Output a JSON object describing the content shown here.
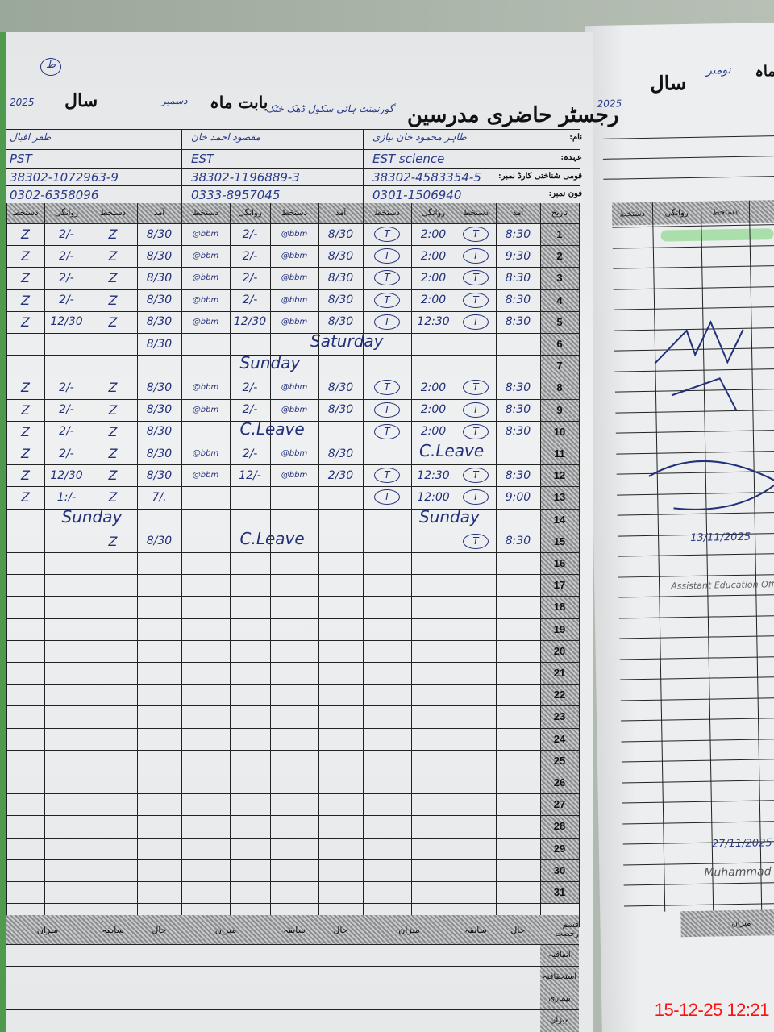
{
  "register": {
    "page_mark": "ط",
    "title": "رجسٹر حاضری مدرسین",
    "school_handwritten": "گورنمنٹ ہائی سکول ڈھک خٹک",
    "month_label": "بابت ماہ",
    "month_value": "دسمبر",
    "year_label": "سال",
    "year_value": "2025",
    "info_labels": {
      "name": "نام:",
      "designation": "عہدہ:",
      "cnic": "قومی شناختی کارڈ نمبر:",
      "phone": "فون نمبر:"
    },
    "column_headers": {
      "date": "تاریخ",
      "arrival": "آمد",
      "signature": "دستخط",
      "departure": "روانگی"
    },
    "teachers": [
      {
        "name": "طاہر محمود خان نیازی",
        "designation": "EST science",
        "cnic": "38302-4583354-5",
        "phone": "0301-1506940"
      },
      {
        "name": "مقصود احمد خان",
        "designation": "EST",
        "cnic": "38302-1196889-3",
        "phone": "0333-8957045"
      },
      {
        "name": "ظفر اقبال",
        "designation": "PST",
        "cnic": "38302-1072963-9",
        "phone": "0302-6358096"
      }
    ],
    "signature_marks": [
      "T",
      "@bbm",
      "Z"
    ],
    "rows": [
      {
        "day": "1",
        "t": [
          [
            "8:30",
            1,
            "2:00",
            1
          ],
          [
            "8/30",
            1,
            "2/-",
            1
          ],
          [
            "8/30",
            1,
            "2/-",
            1
          ]
        ]
      },
      {
        "day": "2",
        "t": [
          [
            "9:30",
            1,
            "2:00",
            1
          ],
          [
            "8/30",
            1,
            "2/-",
            1
          ],
          [
            "8/30",
            1,
            "2/-",
            1
          ]
        ]
      },
      {
        "day": "3",
        "t": [
          [
            "8:30",
            1,
            "2:00",
            1
          ],
          [
            "8/30",
            1,
            "2/-",
            1
          ],
          [
            "8/30",
            1,
            "2/-",
            1
          ]
        ]
      },
      {
        "day": "4",
        "t": [
          [
            "8:30",
            1,
            "2:00",
            1
          ],
          [
            "8/30",
            1,
            "2/-",
            1
          ],
          [
            "8/30",
            1,
            "2/-",
            1
          ]
        ]
      },
      {
        "day": "5",
        "t": [
          [
            "8:30",
            1,
            "12:30",
            1
          ],
          [
            "8/30",
            1,
            "12/30",
            1
          ],
          [
            "8/30",
            1,
            "12/30",
            1
          ]
        ]
      },
      {
        "day": "6",
        "t": [
          [
            "",
            0,
            "",
            0
          ],
          [
            "",
            0,
            "",
            0
          ],
          [
            "8/30",
            0,
            "",
            0
          ]
        ],
        "notes": [
          {
            "text": "Saturday",
            "span": "t1-t2"
          }
        ]
      },
      {
        "day": "7",
        "t": [
          [
            "",
            0,
            "",
            0
          ],
          [
            "",
            0,
            "",
            0
          ],
          [
            "",
            0,
            "",
            0
          ]
        ],
        "notes": [
          {
            "text": "Sunday",
            "span": "t2"
          }
        ]
      },
      {
        "day": "8",
        "t": [
          [
            "8:30",
            1,
            "2:00",
            1
          ],
          [
            "8/30",
            1,
            "2/-",
            1
          ],
          [
            "8/30",
            1,
            "2/-",
            1
          ]
        ]
      },
      {
        "day": "9",
        "t": [
          [
            "8:30",
            1,
            "2:00",
            1
          ],
          [
            "8/30",
            1,
            "2/-",
            1
          ],
          [
            "8/30",
            1,
            "2/-",
            1
          ]
        ]
      },
      {
        "day": "10",
        "t": [
          [
            "8:30",
            1,
            "2:00",
            1
          ],
          [
            "",
            0,
            "",
            0
          ],
          [
            "8/30",
            1,
            "2/-",
            1
          ]
        ],
        "notes": [
          {
            "text": "C.Leave",
            "span": "t2"
          }
        ]
      },
      {
        "day": "11",
        "t": [
          [
            "",
            0,
            "",
            0
          ],
          [
            "8/30",
            1,
            "2/-",
            1
          ],
          [
            "8/30",
            1,
            "2/-",
            1
          ]
        ],
        "notes": [
          {
            "text": "C.Leave",
            "span": "t1"
          }
        ]
      },
      {
        "day": "12",
        "t": [
          [
            "8:30",
            1,
            "12:30",
            1
          ],
          [
            "2/30",
            1,
            "12/-",
            1
          ],
          [
            "8/30",
            1,
            "12/30",
            1
          ]
        ]
      },
      {
        "day": "13",
        "t": [
          [
            "9:00",
            1,
            "12:00",
            1
          ],
          [
            "",
            0,
            "",
            0
          ],
          [
            "7/.",
            1,
            "1:/-",
            1
          ]
        ]
      },
      {
        "day": "14",
        "t": [
          [
            "",
            0,
            "",
            0
          ],
          [
            "",
            0,
            "",
            0
          ],
          [
            "",
            0,
            "",
            0
          ]
        ],
        "notes": [
          {
            "text": "Sunday",
            "span": "t1"
          },
          {
            "text": "Sunday",
            "span": "t3"
          }
        ]
      },
      {
        "day": "15",
        "t": [
          [
            "8:30",
            1,
            "",
            0
          ],
          [
            "",
            0,
            "",
            0
          ],
          [
            "8/30",
            1,
            "",
            0
          ]
        ],
        "notes": [
          {
            "text": "C.Leave",
            "span": "t2"
          }
        ]
      },
      {
        "day": "16"
      },
      {
        "day": "17"
      },
      {
        "day": "18"
      },
      {
        "day": "19"
      },
      {
        "day": "20"
      },
      {
        "day": "21"
      },
      {
        "day": "22"
      },
      {
        "day": "23"
      },
      {
        "day": "24"
      },
      {
        "day": "25"
      },
      {
        "day": "26"
      },
      {
        "day": "27"
      },
      {
        "day": "28"
      },
      {
        "day": "29"
      },
      {
        "day": "30"
      },
      {
        "day": "31"
      }
    ],
    "leave_summary": {
      "header": "قسم رخصت",
      "columns": [
        "حال",
        "سابقہ",
        "میزان"
      ],
      "rows": [
        "اتفاقیہ",
        "استحقاقیہ",
        "بیماری",
        "میزان"
      ]
    }
  },
  "right_page": {
    "month_label": "ماہ",
    "month_value": "نومبر",
    "year_label": "سال",
    "year_value": "2025",
    "headers": [
      "دستخط",
      "روانگی",
      "دستخط"
    ],
    "dates": [
      "13/11/2025",
      "27/11/2025"
    ],
    "stamp_name": "Muhammad",
    "stamp_title": "Assistant Education Officer",
    "total_label": "میزان"
  },
  "camera_timestamp": "15-12-25  12:21",
  "colors": {
    "ink": "#23307a",
    "binding": "#4f9a4f",
    "timestamp": "#ff1010"
  }
}
